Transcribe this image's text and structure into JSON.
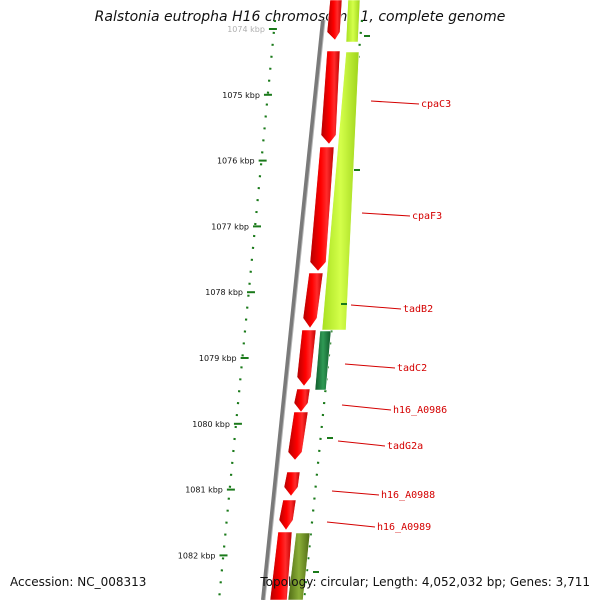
{
  "title": "Ralstonia eutropha H16 chromosome 1, complete genome",
  "footer": {
    "accession": "Accession: NC_008313",
    "summary": "Topology: circular; Length: 4,052,032 bp; Genes: 3,711"
  },
  "ticks": [
    {
      "label": "1074 kbp",
      "kbp": 1074
    },
    {
      "label": "1075 kbp",
      "kbp": 1075
    },
    {
      "label": "1076 kbp",
      "kbp": 1076
    },
    {
      "label": "1077 kbp",
      "kbp": 1077
    },
    {
      "label": "1078 kbp",
      "kbp": 1078
    },
    {
      "label": "1079 kbp",
      "kbp": 1079
    },
    {
      "label": "1080 kbp",
      "kbp": 1080
    },
    {
      "label": "1081 kbp",
      "kbp": 1081
    },
    {
      "label": "1082 kbp",
      "kbp": 1082
    }
  ],
  "genes": [
    {
      "name": "cpaC3"
    },
    {
      "name": "cpaF3"
    },
    {
      "name": "tadB2"
    },
    {
      "name": "tadC2"
    },
    {
      "name": "h16_A0986"
    },
    {
      "name": "tadG2a"
    },
    {
      "name": "h16_A0988"
    },
    {
      "name": "h16_A0989"
    }
  ],
  "colors": {
    "cds": "#ff0000",
    "cds_dark": "#b30000",
    "feature_light": "#ccff33",
    "feature_dark_green": "#1a7a3a",
    "feature_olive": "#6b8e23",
    "tick": "#1a7a1a",
    "backbone": "#7a7a7a",
    "label": "#d40000"
  }
}
